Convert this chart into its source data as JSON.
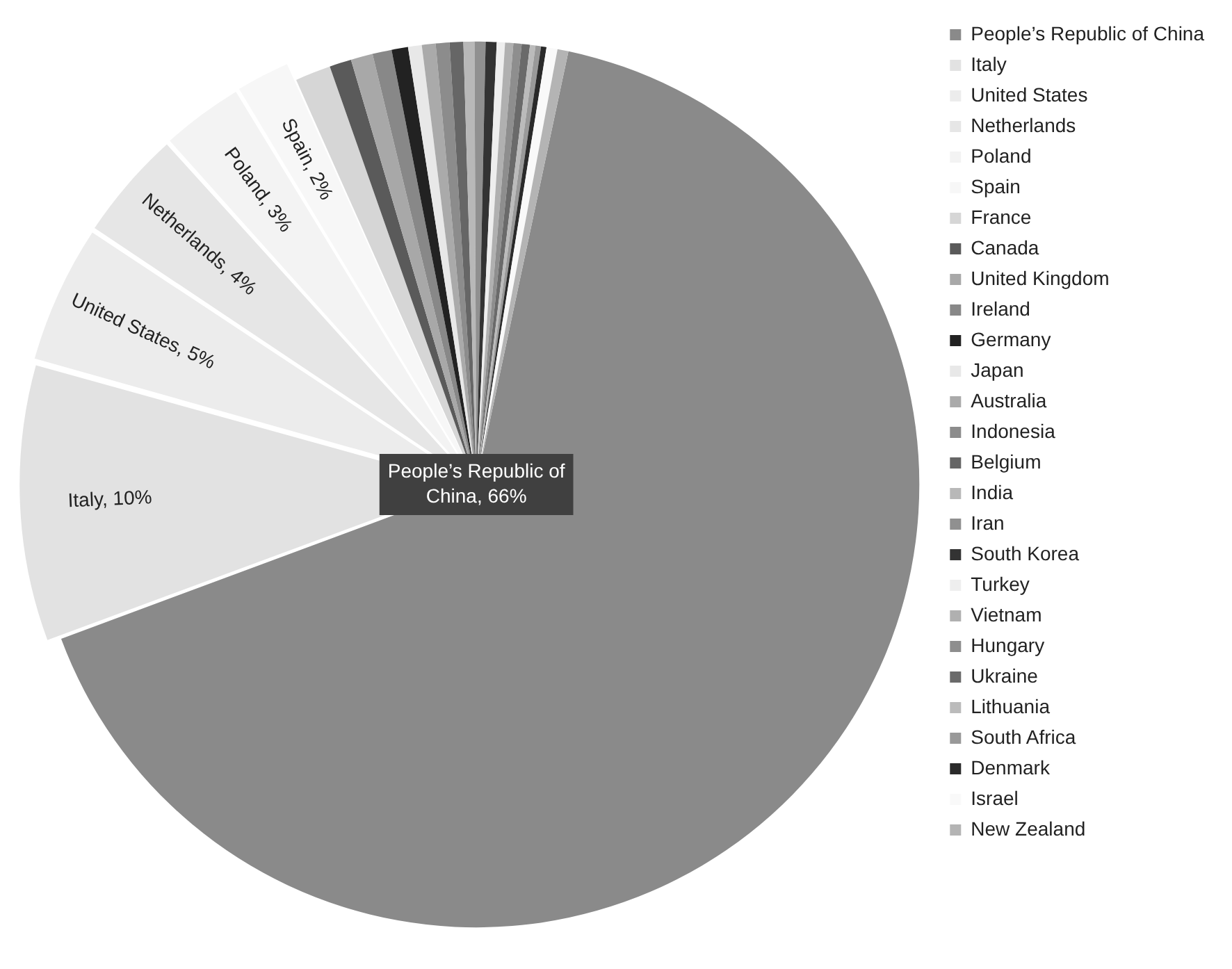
{
  "chart_data": {
    "type": "pie",
    "categories": [
      "People’s Republic of China",
      "Italy",
      "United States",
      "Netherlands",
      "Poland",
      "Spain",
      "France",
      "Canada",
      "United Kingdom",
      "Ireland",
      "Germany",
      "Japan",
      "Australia",
      "Indonesia",
      "Belgium",
      "India",
      "Iran",
      "South Korea",
      "Turkey",
      "Vietnam",
      "Hungary",
      "Ukraine",
      "Lithuania",
      "South Africa",
      "Denmark",
      "Israel",
      "New Zealand"
    ],
    "values": [
      66,
      10,
      5,
      4,
      3,
      2,
      1.3,
      0.8,
      0.8,
      0.7,
      0.6,
      0.5,
      0.5,
      0.5,
      0.5,
      0.4,
      0.4,
      0.4,
      0.3,
      0.3,
      0.3,
      0.3,
      0.2,
      0.2,
      0.2,
      0.4,
      0.4
    ],
    "value_labels": [
      "People’s Republic of China, 66%",
      "Italy, 10%",
      "United States, 5%",
      "Netherlands, 4%",
      "Poland, 3%",
      "Spain, 2%",
      null,
      null,
      null,
      null,
      null,
      null,
      null,
      null,
      null,
      null,
      null,
      null,
      null,
      null,
      null,
      null,
      null,
      null,
      null,
      null,
      null
    ],
    "colors": [
      "#8a8a8a",
      "#e2e2e2",
      "#ececec",
      "#e6e6e6",
      "#f3f3f3",
      "#f7f7f7",
      "#d6d6d6",
      "#5a5a5a",
      "#a8a8a8",
      "#888888",
      "#222222",
      "#e8e8e8",
      "#aaaaaa",
      "#8c8c8c",
      "#666666",
      "#b8b8b8",
      "#909090",
      "#333333",
      "#eeeeee",
      "#b0b0b0",
      "#8e8e8e",
      "#6a6a6a",
      "#bbbbbb",
      "#999999",
      "#2a2a2a",
      "#f9f9f9",
      "#b4b4b4"
    ],
    "legend": "right"
  }
}
